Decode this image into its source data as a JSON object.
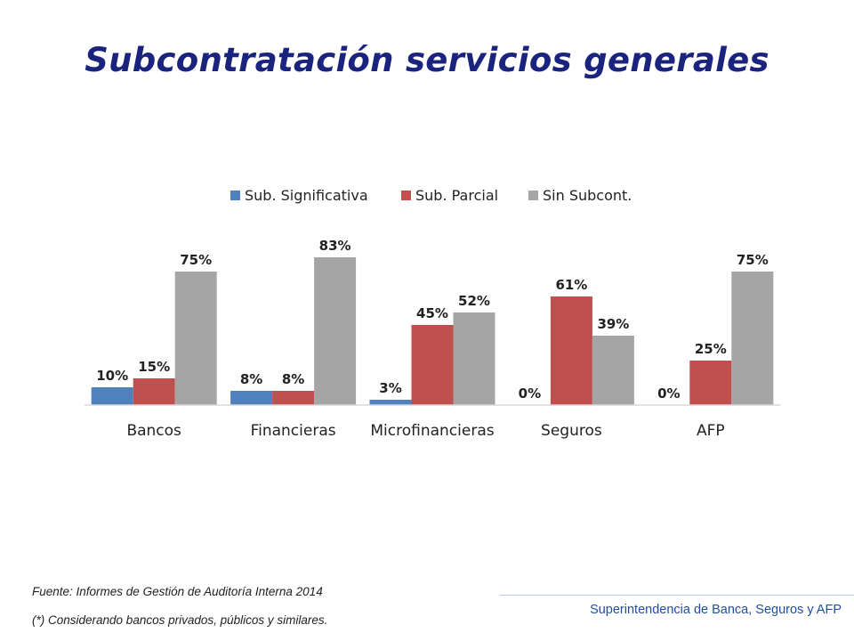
{
  "title": "Subcontratación servicios generales",
  "footnotes": {
    "source": "Fuente: Informes de Gestión de Auditoría Interna 2014",
    "note": "(*) Considerando bancos privados, públicos y similares."
  },
  "footer": {
    "organization": "Superintendencia de Banca, Seguros y AFP"
  },
  "chart_data": {
    "type": "bar",
    "categories": [
      "Bancos",
      "Financieras",
      "Microfinancieras",
      "Seguros",
      "AFP"
    ],
    "series": [
      {
        "name": "Sub. Significativa",
        "color": "#4f81bd",
        "values": [
          10,
          8,
          3,
          0,
          0
        ],
        "labels": [
          "10%",
          "8%",
          "3%",
          "0%",
          "0%"
        ]
      },
      {
        "name": "Sub. Parcial",
        "color": "#c0504d",
        "values": [
          15,
          8,
          45,
          61,
          25
        ],
        "labels": [
          "15%",
          "8%",
          "45%",
          "61%",
          "25%"
        ]
      },
      {
        "name": "Sin Subcont.",
        "color": "#a5a5a5",
        "values": [
          75,
          83,
          52,
          39,
          75
        ],
        "labels": [
          "75%",
          "83%",
          "52%",
          "39%",
          "75%"
        ]
      }
    ],
    "ylim": [
      0,
      100
    ],
    "grid": false,
    "legend_position": "top",
    "axis_color": "#d9d9d9"
  }
}
